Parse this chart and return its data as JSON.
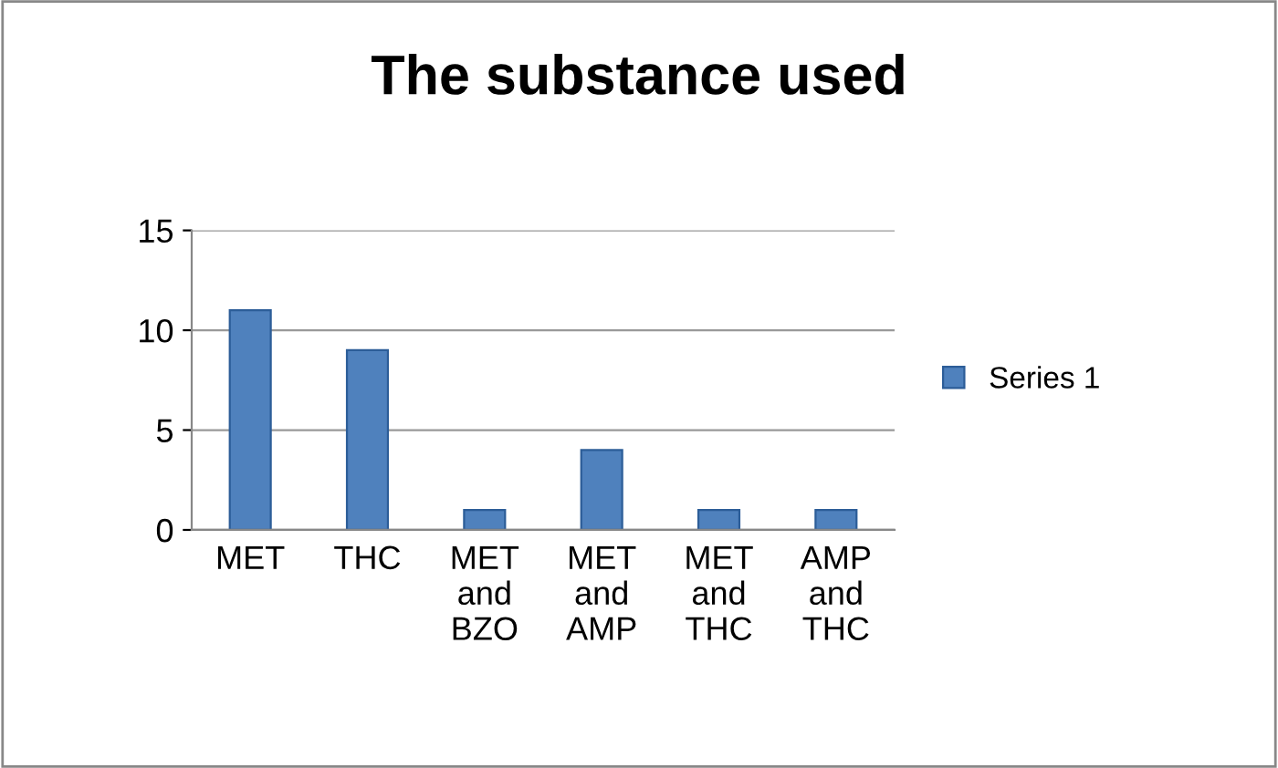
{
  "chart_data": {
    "type": "bar",
    "title": "The substance used",
    "categories": [
      "MET",
      "THC",
      "MET\nand\nBZO",
      "MET\nand\nAMP",
      "MET\nand\nTHC",
      "AMP\nand\nTHC"
    ],
    "series": [
      {
        "name": "Series 1",
        "color": "#4f81bd",
        "values": [
          11,
          9,
          1,
          4,
          1,
          1
        ]
      }
    ],
    "ylim": [
      0,
      15
    ],
    "yticks": [
      0,
      5,
      10,
      15
    ],
    "grid": "y",
    "legend": "right"
  }
}
